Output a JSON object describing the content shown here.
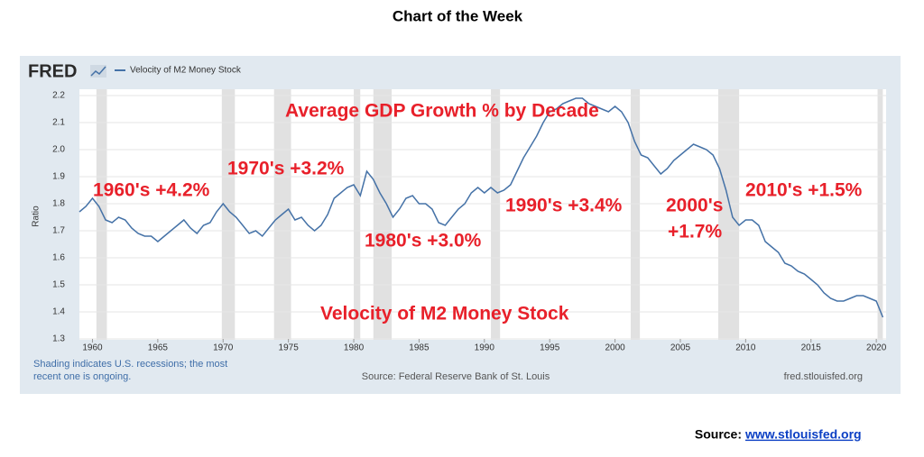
{
  "page_title": "Chart of the Week",
  "source_label": "Source:",
  "source_link": "www.stlouisfed.org",
  "chart_data": {
    "type": "line",
    "brand": "FRED",
    "ylabel": "Ratio",
    "note": [
      "Shading indicates U.S. recessions; the most",
      "recent one is ongoing."
    ],
    "source": "Source: Federal Reserve Bank of St. Louis",
    "site": "fred.stlouisfed.org",
    "annotations": [
      "Average GDP Growth % by Decade",
      "1960's +4.2%",
      "1970's +3.2%",
      "1980's +3.0%",
      "1990's +3.4%",
      "2000's",
      "+1.7%",
      "2010's +1.5%",
      "Velocity of M2 Money Stock"
    ],
    "xlim": [
      1959,
      2020.75
    ],
    "xticks": [
      1960,
      1965,
      1970,
      1975,
      1980,
      1985,
      1990,
      1995,
      2000,
      2005,
      2010,
      2015,
      2020
    ],
    "ylim": [
      1.3,
      2.2
    ],
    "yticks": [
      1.3,
      1.4,
      1.5,
      1.6,
      1.7,
      1.8,
      1.9,
      {
        "value": 2,
        "label": "2.0"
      },
      2.1,
      2.2
    ],
    "grid": true,
    "recession_color": "#e1e1e1",
    "recessions": [
      [
        1960.3,
        1961.1
      ],
      [
        1969.9,
        1970.9
      ],
      [
        1973.9,
        1975.2
      ],
      [
        1980.0,
        1980.5
      ],
      [
        1981.5,
        1982.9
      ],
      [
        1990.5,
        1991.2
      ],
      [
        2001.2,
        2001.9
      ],
      [
        2007.9,
        2009.5
      ],
      [
        2020.1,
        2020.5
      ]
    ],
    "x": [
      1959,
      1959.5,
      1960,
      1960.5,
      1961,
      1961.5,
      1962,
      1962.5,
      1963,
      1963.5,
      1964,
      1964.5,
      1965,
      1965.5,
      1966,
      1966.5,
      1967,
      1967.5,
      1968,
      1968.5,
      1969,
      1969.5,
      1970,
      1970.5,
      1971,
      1971.5,
      1972,
      1972.5,
      1973,
      1973.5,
      1974,
      1974.5,
      1975,
      1975.5,
      1976,
      1976.5,
      1977,
      1977.5,
      1978,
      1978.5,
      1979,
      1979.5,
      1980,
      1980.5,
      1981,
      1981.5,
      1982,
      1982.5,
      1983,
      1983.5,
      1984,
      1984.5,
      1985,
      1985.5,
      1986,
      1986.5,
      1987,
      1987.5,
      1988,
      1988.5,
      1989,
      1989.5,
      1990,
      1990.5,
      1991,
      1991.5,
      1992,
      1992.5,
      1993,
      1993.5,
      1994,
      1994.5,
      1995,
      1995.5,
      1996,
      1996.5,
      1997,
      1997.5,
      1998,
      1998.5,
      1999,
      1999.5,
      2000,
      2000.5,
      2001,
      2001.5,
      2002,
      2002.5,
      2003,
      2003.5,
      2004,
      2004.5,
      2005,
      2005.5,
      2006,
      2006.5,
      2007,
      2007.5,
      2008,
      2008.5,
      2009,
      2009.5,
      2010,
      2010.5,
      2011,
      2011.5,
      2012,
      2012.5,
      2013,
      2013.5,
      2014,
      2014.5,
      2015,
      2015.5,
      2016,
      2016.5,
      2017,
      2017.5,
      2018,
      2018.5,
      2019,
      2019.5,
      2020,
      2020.5
    ],
    "series": [
      {
        "name": "Velocity of M2 Money Stock",
        "color": "#4572a7",
        "values": [
          1.77,
          1.79,
          1.82,
          1.79,
          1.74,
          1.73,
          1.75,
          1.74,
          1.71,
          1.69,
          1.68,
          1.68,
          1.66,
          1.68,
          1.7,
          1.72,
          1.74,
          1.71,
          1.69,
          1.72,
          1.73,
          1.77,
          1.8,
          1.77,
          1.75,
          1.72,
          1.69,
          1.7,
          1.68,
          1.71,
          1.74,
          1.76,
          1.78,
          1.74,
          1.75,
          1.72,
          1.7,
          1.72,
          1.76,
          1.82,
          1.84,
          1.86,
          1.87,
          1.83,
          1.92,
          1.89,
          1.84,
          1.8,
          1.75,
          1.78,
          1.82,
          1.83,
          1.8,
          1.8,
          1.78,
          1.73,
          1.72,
          1.75,
          1.78,
          1.8,
          1.84,
          1.86,
          1.84,
          1.86,
          1.84,
          1.85,
          1.87,
          1.92,
          1.97,
          2.01,
          2.05,
          2.1,
          2.14,
          2.15,
          2.17,
          2.18,
          2.19,
          2.19,
          2.17,
          2.16,
          2.15,
          2.14,
          2.16,
          2.14,
          2.1,
          2.03,
          1.98,
          1.97,
          1.94,
          1.91,
          1.93,
          1.96,
          1.98,
          2.0,
          2.02,
          2.01,
          2.0,
          1.98,
          1.93,
          1.85,
          1.75,
          1.72,
          1.74,
          1.74,
          1.72,
          1.66,
          1.64,
          1.62,
          1.58,
          1.57,
          1.55,
          1.54,
          1.52,
          1.5,
          1.47,
          1.45,
          1.44,
          1.44,
          1.45,
          1.46,
          1.46,
          1.45,
          1.44,
          1.38
        ]
      }
    ]
  }
}
